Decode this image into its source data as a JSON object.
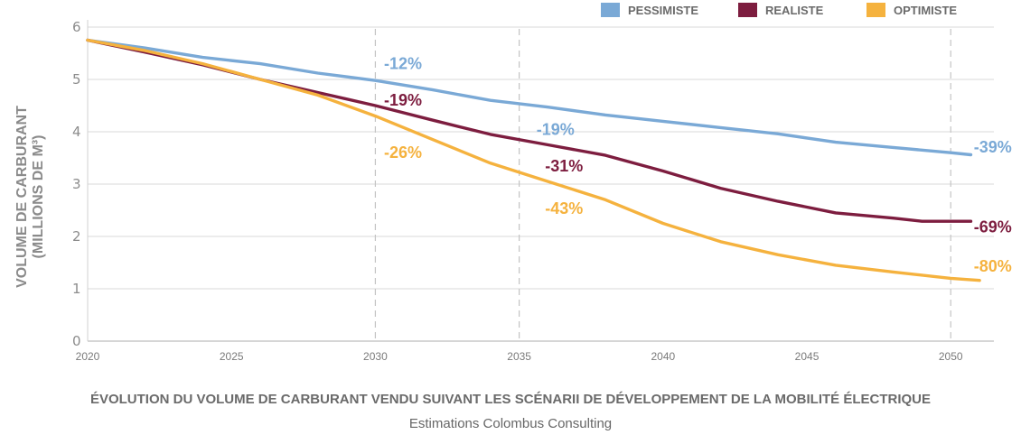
{
  "chart_data": {
    "type": "line",
    "title": "ÉVOLUTION DU VOLUME DE CARBURANT VENDU SUIVANT LES SCÉNARII DE DÉVELOPPEMENT DE LA MOBILITÉ ÉLECTRIQUE",
    "subtitle": "Estimations Colombus Consulting",
    "ylabel_line1": "VOLUME DE CARBURANT",
    "ylabel_line2": "(MILLIONS DE M³)",
    "xlabel": "",
    "xlim": [
      2020,
      2051.5
    ],
    "ylim": [
      0,
      6
    ],
    "x_ticks": [
      "2020",
      "2025",
      "2030",
      "2035",
      "2040",
      "2045",
      "2050"
    ],
    "y_ticks": [
      "0",
      "1",
      "2",
      "3",
      "4",
      "5",
      "6"
    ],
    "reference_years": [
      2030,
      2035,
      2050
    ],
    "grid": "horizontal",
    "legend_position": "top-right",
    "series": [
      {
        "name": "PESSIMISTE",
        "color": "#7aa9d6",
        "x": [
          2020,
          2022,
          2024,
          2026,
          2028,
          2030,
          2032,
          2034,
          2036,
          2038,
          2040,
          2042,
          2044,
          2046,
          2048,
          2050,
          2050.7
        ],
        "y": [
          5.75,
          5.6,
          5.42,
          5.3,
          5.12,
          4.98,
          4.8,
          4.6,
          4.47,
          4.32,
          4.2,
          4.08,
          3.96,
          3.8,
          3.7,
          3.6,
          3.56
        ]
      },
      {
        "name": "REALISTE",
        "color": "#7d1d3f",
        "x": [
          2020,
          2022,
          2024,
          2026,
          2028,
          2030,
          2032,
          2034,
          2036,
          2038,
          2040,
          2042,
          2044,
          2046,
          2048,
          2049,
          2050,
          2050.7
        ],
        "y": [
          5.75,
          5.52,
          5.28,
          5.0,
          4.75,
          4.5,
          4.22,
          3.95,
          3.75,
          3.55,
          3.25,
          2.92,
          2.67,
          2.45,
          2.35,
          2.29,
          2.29,
          2.29
        ]
      },
      {
        "name": "OPTIMISTE",
        "color": "#f5b23e",
        "x": [
          2020,
          2022,
          2024,
          2026,
          2028,
          2030,
          2032,
          2034,
          2036,
          2038,
          2040,
          2042,
          2044,
          2046,
          2048,
          2050,
          2051
        ],
        "y": [
          5.75,
          5.55,
          5.3,
          5.0,
          4.7,
          4.3,
          3.85,
          3.4,
          3.05,
          2.7,
          2.25,
          1.9,
          1.65,
          1.45,
          1.32,
          1.2,
          1.16
        ]
      }
    ],
    "annotations": [
      {
        "text": "-12%",
        "series": 0,
        "x": 2030.3,
        "y": 5.2
      },
      {
        "text": "-19%",
        "series": 1,
        "x": 2030.3,
        "y": 4.5
      },
      {
        "text": "-26%",
        "series": 2,
        "x": 2030.3,
        "y": 3.5
      },
      {
        "text": "-19%",
        "series": 0,
        "x": 2035.6,
        "y": 3.94
      },
      {
        "text": "-31%",
        "series": 1,
        "x": 2035.9,
        "y": 3.24
      },
      {
        "text": "-43%",
        "series": 2,
        "x": 2035.9,
        "y": 2.43
      },
      {
        "text": "-39%",
        "series": 0,
        "x": 2050.8,
        "y": 3.6
      },
      {
        "text": "-69%",
        "series": 1,
        "x": 2050.8,
        "y": 2.08
      },
      {
        "text": "-80%",
        "series": 2,
        "x": 2050.8,
        "y": 1.33
      }
    ]
  }
}
